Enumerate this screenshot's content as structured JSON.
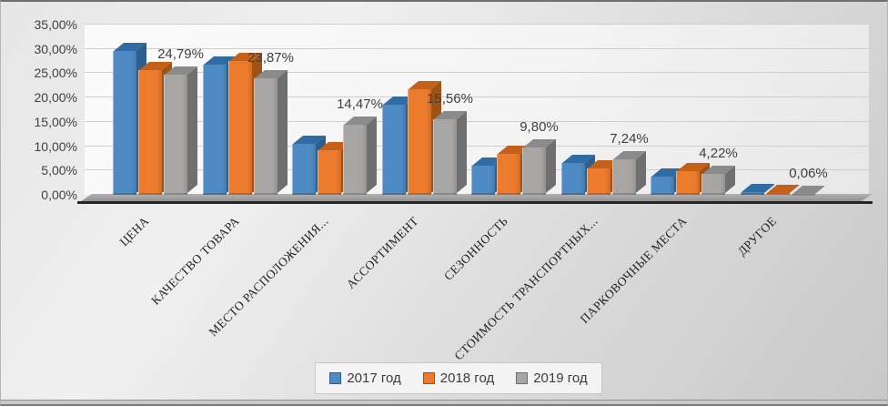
{
  "chart_data": {
    "type": "bar",
    "variant": "3d-clustered-column",
    "title": "",
    "xlabel": "",
    "ylabel": "",
    "categories": [
      "ЦЕНА",
      "КАЧЕСТВО ТОВАРА",
      "МЕСТО РАСПОЛОЖЕНИЯ...",
      "АССОРТИМЕНТ",
      "СЕЗОННОСТЬ",
      "СТОИМОСТЬ ТРАНСПОРТНЫХ...",
      "ПАРКОВОЧНЫЕ МЕСТА",
      "ДРУГОЕ"
    ],
    "series": [
      {
        "name": "2017 год",
        "color": "#4E8BC4",
        "side_color": "#2D5E8C",
        "top_color": "#2E6CA3",
        "values": [
          29.6,
          26.7,
          10.5,
          18.5,
          6.0,
          6.6,
          3.7,
          0.5
        ]
      },
      {
        "name": "2018 год",
        "color": "#EC7B2E",
        "side_color": "#9E5214",
        "top_color": "#C4601A",
        "values": [
          25.6,
          27.6,
          9.2,
          21.7,
          8.4,
          5.5,
          4.8,
          0.3
        ]
      },
      {
        "name": "2019 год",
        "color": "#A8A5A2",
        "side_color": "#6F6F6F",
        "top_color": "#8B8B8B",
        "values": [
          24.79,
          23.87,
          14.47,
          15.56,
          9.8,
          7.24,
          4.22,
          0.06
        ],
        "data_labels": [
          "24,79%",
          "23,87%",
          "14,47%",
          "15,56%",
          "9,80%",
          "7,24%",
          "4,22%",
          "0,06%"
        ]
      }
    ],
    "data_labels_visible_for": "2019 год",
    "y_axis": {
      "min": 0,
      "max": 35,
      "step": 5,
      "tick_labels": [
        "0,00%",
        "5,00%",
        "10,00%",
        "15,00%",
        "20,00%",
        "25,00%",
        "30,00%",
        "35,00%"
      ]
    },
    "ylim": [
      0,
      35
    ],
    "grid": true,
    "legend": {
      "position": "bottom",
      "entries": [
        "2017 год",
        "2018 год",
        "2019 год"
      ]
    }
  }
}
